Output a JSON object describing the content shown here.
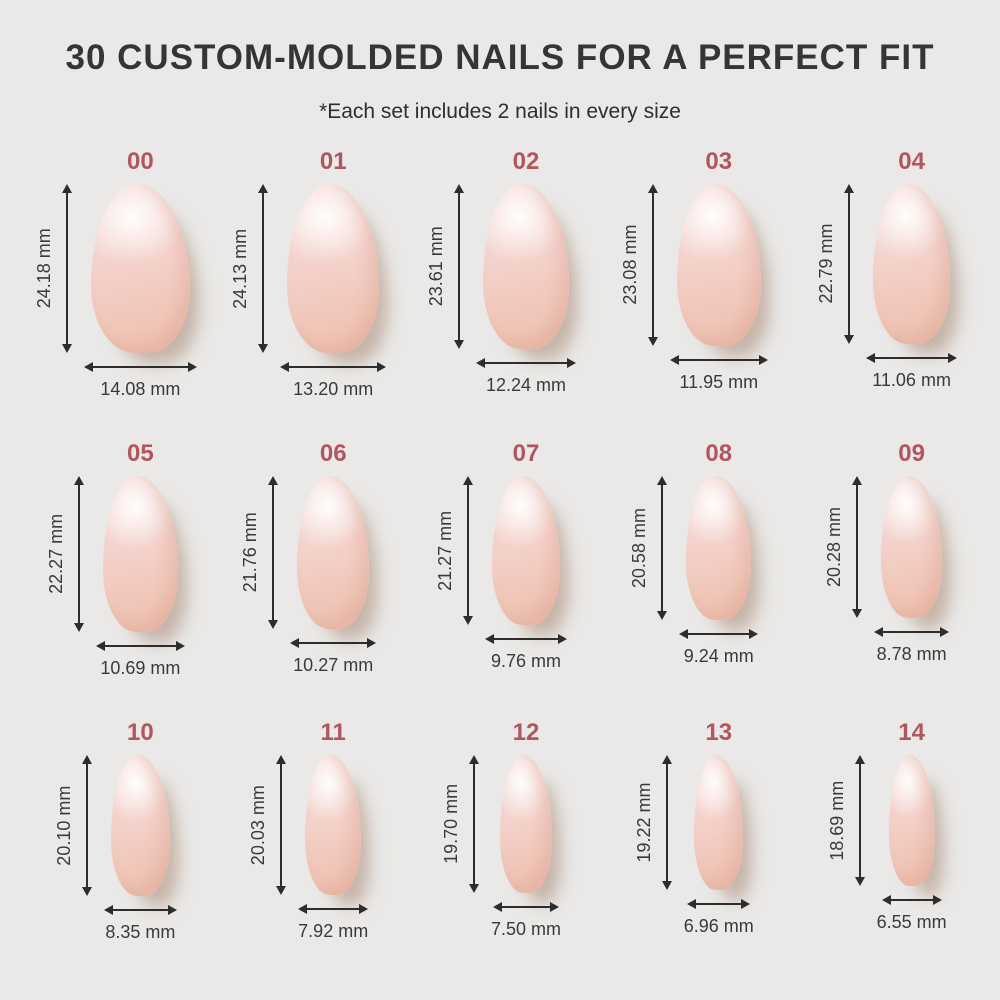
{
  "title": "30 CUSTOM-MOLDED NAILS FOR A PERFECT FIT",
  "subtitle": "*Each set includes 2 nails in every size",
  "colors": {
    "background": "#eae9e7",
    "accent_size_number": "#b1555e",
    "text": "#333333",
    "nail_light": "#f7dedb",
    "nail_dark": "#efc2b2",
    "shadow": "#a78874"
  },
  "chart_data": {
    "type": "table",
    "title": "30 CUSTOM-MOLDED NAILS FOR A PERFECT FIT",
    "columns": [
      "size",
      "height_mm",
      "width_mm"
    ],
    "rows": [
      [
        "00",
        24.18,
        14.08
      ],
      [
        "01",
        24.13,
        13.2
      ],
      [
        "02",
        23.61,
        12.24
      ],
      [
        "03",
        23.08,
        11.95
      ],
      [
        "04",
        22.79,
        11.06
      ],
      [
        "05",
        22.27,
        10.69
      ],
      [
        "06",
        21.76,
        10.27
      ],
      [
        "07",
        21.27,
        9.76
      ],
      [
        "08",
        20.58,
        9.24
      ],
      [
        "09",
        20.28,
        8.78
      ],
      [
        "10",
        20.1,
        8.35
      ],
      [
        "11",
        20.03,
        7.92
      ],
      [
        "12",
        19.7,
        7.5
      ],
      [
        "13",
        19.22,
        6.96
      ],
      [
        "14",
        18.69,
        6.55
      ]
    ]
  },
  "sizes": [
    {
      "label": "00",
      "height": "24.18 mm",
      "width": "14.08 mm"
    },
    {
      "label": "01",
      "height": "24.13 mm",
      "width": "13.20 mm"
    },
    {
      "label": "02",
      "height": "23.61 mm",
      "width": "12.24 mm"
    },
    {
      "label": "03",
      "height": "23.08 mm",
      "width": "11.95 mm"
    },
    {
      "label": "04",
      "height": "22.79 mm",
      "width": "11.06 mm"
    },
    {
      "label": "05",
      "height": "22.27 mm",
      "width": "10.69 mm"
    },
    {
      "label": "06",
      "height": "21.76 mm",
      "width": "10.27 mm"
    },
    {
      "label": "07",
      "height": "21.27 mm",
      "width": "9.76 mm"
    },
    {
      "label": "08",
      "height": "20.58 mm",
      "width": "9.24 mm"
    },
    {
      "label": "09",
      "height": "20.28 mm",
      "width": "8.78 mm"
    },
    {
      "label": "10",
      "height": "20.10 mm",
      "width": "8.35 mm"
    },
    {
      "label": "11",
      "height": "20.03 mm",
      "width": "7.92 mm"
    },
    {
      "label": "12",
      "height": "19.70 mm",
      "width": "7.50 mm"
    },
    {
      "label": "13",
      "height": "19.22 mm",
      "width": "6.96 mm"
    },
    {
      "label": "14",
      "height": "18.69 mm",
      "width": "6.55 mm"
    }
  ]
}
